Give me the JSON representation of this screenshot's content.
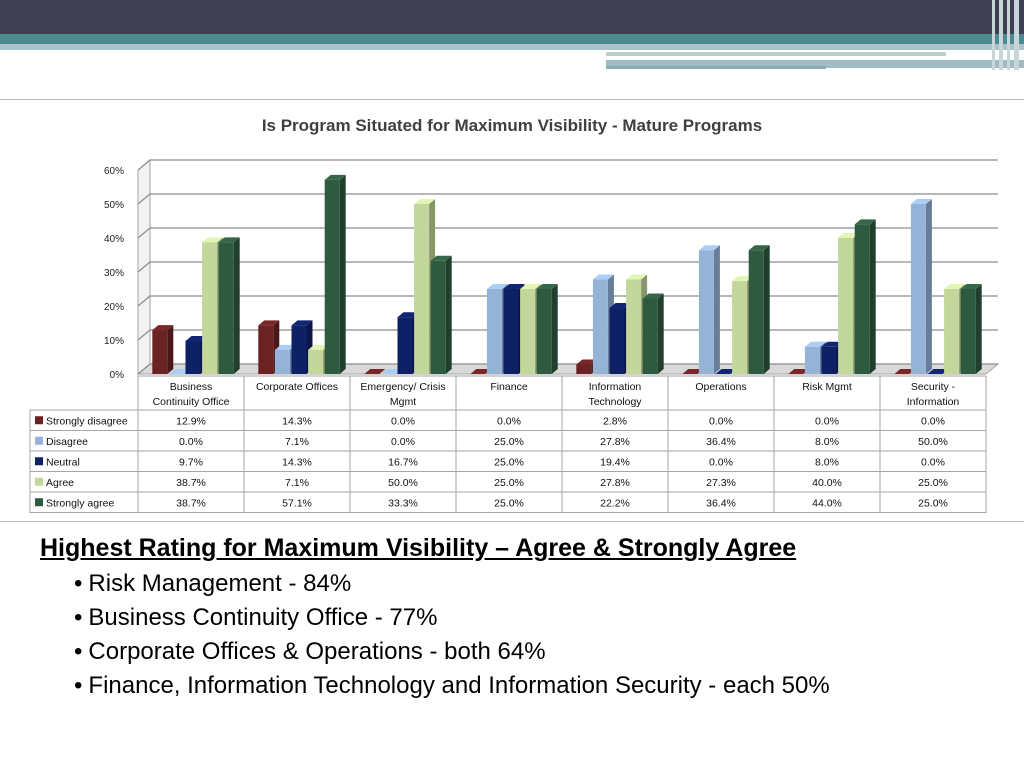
{
  "chart_data": {
    "type": "bar",
    "title": "Is Program Situated for Maximum Visibility - Mature Programs",
    "categories": [
      "Business Continuity Office",
      "Corporate Offices",
      "Emergency/ Crisis Mgmt",
      "Finance",
      "Information Technology",
      "Operations",
      "Risk Mgmt",
      "Security - Information"
    ],
    "series": [
      {
        "name": "Strongly disagree",
        "color": "#6b2222",
        "values": [
          12.9,
          14.3,
          0.0,
          0.0,
          2.8,
          0.0,
          0.0,
          0.0
        ],
        "labels": [
          "12.9%",
          "14.3%",
          "0.0%",
          "0.0%",
          "2.8%",
          "0.0%",
          "0.0%",
          "0.0%"
        ]
      },
      {
        "name": "Disagree",
        "color": "#95b3d7",
        "values": [
          0.0,
          7.1,
          0.0,
          25.0,
          27.8,
          36.4,
          8.0,
          50.0
        ],
        "labels": [
          "0.0%",
          "7.1%",
          "0.0%",
          "25.0%",
          "27.8%",
          "36.4%",
          "8.0%",
          "50.0%"
        ]
      },
      {
        "name": "Neutral",
        "color": "#0e2165",
        "values": [
          9.7,
          14.3,
          16.7,
          25.0,
          19.4,
          0.0,
          8.0,
          0.0
        ],
        "labels": [
          "9.7%",
          "14.3%",
          "16.7%",
          "25.0%",
          "19.4%",
          "0.0%",
          "8.0%",
          "0.0%"
        ]
      },
      {
        "name": "Agree",
        "color": "#c3d69b",
        "values": [
          38.7,
          7.1,
          50.0,
          25.0,
          27.8,
          27.3,
          40.0,
          25.0
        ],
        "labels": [
          "38.7%",
          "7.1%",
          "50.0%",
          "25.0%",
          "27.8%",
          "27.3%",
          "40.0%",
          "25.0%"
        ]
      },
      {
        "name": "Strongly agree",
        "color": "#2e5a3f",
        "values": [
          38.7,
          57.1,
          33.3,
          25.0,
          22.2,
          36.4,
          44.0,
          25.0
        ],
        "labels": [
          "38.7%",
          "57.1%",
          "33.3%",
          "25.0%",
          "22.2%",
          "36.4%",
          "44.0%",
          "25.0%"
        ]
      }
    ],
    "y_ticks": [
      "0%",
      "10%",
      "20%",
      "30%",
      "40%",
      "50%",
      "60%"
    ],
    "ylim": [
      0,
      60
    ],
    "grid": true,
    "legend": "data table below chart"
  },
  "notes": {
    "heading": "Highest Rating for Maximum Visibility – Agree & Strongly Agree",
    "bullet": "•",
    "items": [
      "Risk Management - 84%",
      "Business Continuity Office - 77%",
      "Corporate Offices & Operations - both 64%",
      "Finance, Information Technology and Information Security - each 50%"
    ]
  }
}
